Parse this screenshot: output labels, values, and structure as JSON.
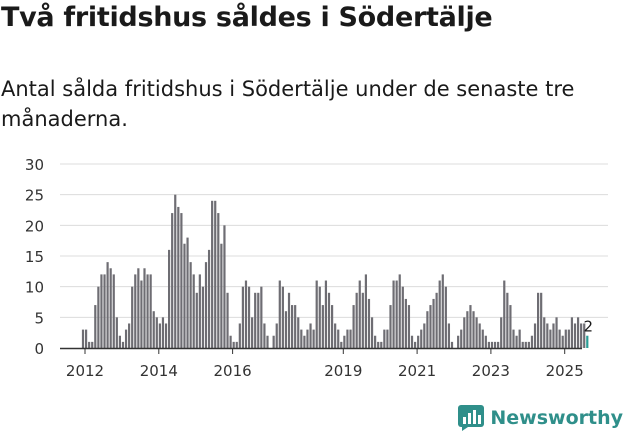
{
  "header": {
    "title": "Två fritidshus såldes i Södertälje",
    "subtitle": "Antal sålda fritidshus i Södertälje under de senaste tre månaderna."
  },
  "brand": {
    "name": "Newsworthy",
    "color": "#2f8f8a"
  },
  "chart_data": {
    "type": "bar",
    "title": "Två fritidshus såldes i Södertälje",
    "subtitle": "Antal sålda fritidshus i Södertälje under de senaste tre månaderna.",
    "xlabel": "",
    "ylabel": "",
    "ylim": [
      0,
      30
    ],
    "yticks": [
      0,
      5,
      10,
      15,
      20,
      25,
      30
    ],
    "x_tick_labels": [
      "2012",
      "2014",
      "2016",
      "2019",
      "2021",
      "2023",
      "2025"
    ],
    "grid": true,
    "bar_color": "#6e6d73",
    "highlight_color": "#2a9d96",
    "highlight_label": "2",
    "series": [
      {
        "name": "2012",
        "start_index": 0,
        "values": [
          3,
          3,
          1,
          1,
          7,
          10,
          12,
          12,
          14,
          13,
          12,
          5
        ]
      },
      {
        "name": "2013",
        "start_index": 12,
        "values": [
          2,
          1,
          3,
          4,
          10,
          12,
          13,
          11,
          13,
          12,
          12,
          6
        ]
      },
      {
        "name": "2014",
        "start_index": 24,
        "values": [
          5,
          4,
          5,
          4,
          16,
          22,
          25,
          23,
          22,
          17,
          18,
          14
        ]
      },
      {
        "name": "2015",
        "start_index": 36,
        "values": [
          12,
          9,
          12,
          10,
          14,
          16,
          24,
          24,
          22,
          17,
          20,
          9
        ]
      },
      {
        "name": "2016",
        "start_index": 48,
        "values": [
          2,
          1,
          1,
          4,
          10,
          11,
          10,
          5,
          9,
          9,
          10,
          4
        ]
      },
      {
        "name": "2017",
        "start_index": 60,
        "values": [
          2,
          0,
          2,
          4,
          11,
          10,
          6,
          9,
          7,
          7,
          5,
          3
        ]
      },
      {
        "name": "2018",
        "start_index": 72,
        "values": [
          2,
          3,
          4,
          3,
          11,
          10,
          7,
          11,
          9,
          7,
          4,
          3
        ]
      },
      {
        "name": "2019",
        "start_index": 84,
        "values": [
          1,
          2,
          3,
          3,
          7,
          9,
          11,
          9,
          12,
          8,
          5,
          2
        ]
      },
      {
        "name": "2020",
        "start_index": 96,
        "values": [
          1,
          1,
          3,
          3,
          7,
          11,
          11,
          12,
          10,
          8,
          7,
          2
        ]
      },
      {
        "name": "2021",
        "start_index": 108,
        "values": [
          1,
          2,
          3,
          4,
          6,
          7,
          8,
          9,
          11,
          12,
          10,
          4
        ]
      },
      {
        "name": "2022",
        "start_index": 120,
        "values": [
          1,
          0,
          2,
          3,
          5,
          6,
          7,
          6,
          5,
          4,
          3,
          2
        ]
      },
      {
        "name": "2023",
        "start_index": 132,
        "values": [
          1,
          1,
          1,
          1,
          5,
          11,
          9,
          7,
          3,
          2,
          3,
          1
        ]
      },
      {
        "name": "2024",
        "start_index": 144,
        "values": [
          1,
          1,
          2,
          4,
          9,
          9,
          5,
          4,
          3,
          4,
          5,
          3
        ]
      },
      {
        "name": "2025",
        "start_index": 156,
        "values": [
          2,
          3,
          3,
          5,
          4,
          5,
          4,
          4,
          2
        ]
      }
    ]
  }
}
